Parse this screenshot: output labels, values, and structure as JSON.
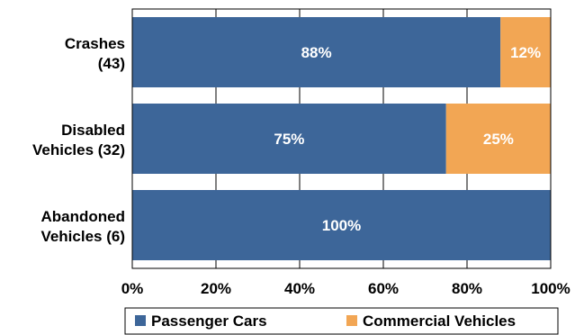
{
  "chart_data": {
    "type": "bar",
    "orientation": "horizontal",
    "stacked": true,
    "categories": [
      [
        "Crashes",
        "(43)"
      ],
      [
        "Disabled",
        "Vehicles (32)"
      ],
      [
        "Abandoned",
        "Vehicles (6)"
      ]
    ],
    "series": [
      {
        "name": "Passenger Cars",
        "values": [
          88,
          75,
          100
        ],
        "labels": [
          "88%",
          "75%",
          "100%"
        ],
        "color": "#3D6699"
      },
      {
        "name": "Commercial Vehicles",
        "values": [
          12,
          25,
          0
        ],
        "labels": [
          "12%",
          "25%",
          ""
        ],
        "color": "#F2A654"
      }
    ],
    "x_ticks": [
      "0%",
      "20%",
      "40%",
      "60%",
      "80%",
      "100%"
    ],
    "xlim": [
      0,
      100
    ],
    "grid": true,
    "legend_position": "bottom"
  }
}
